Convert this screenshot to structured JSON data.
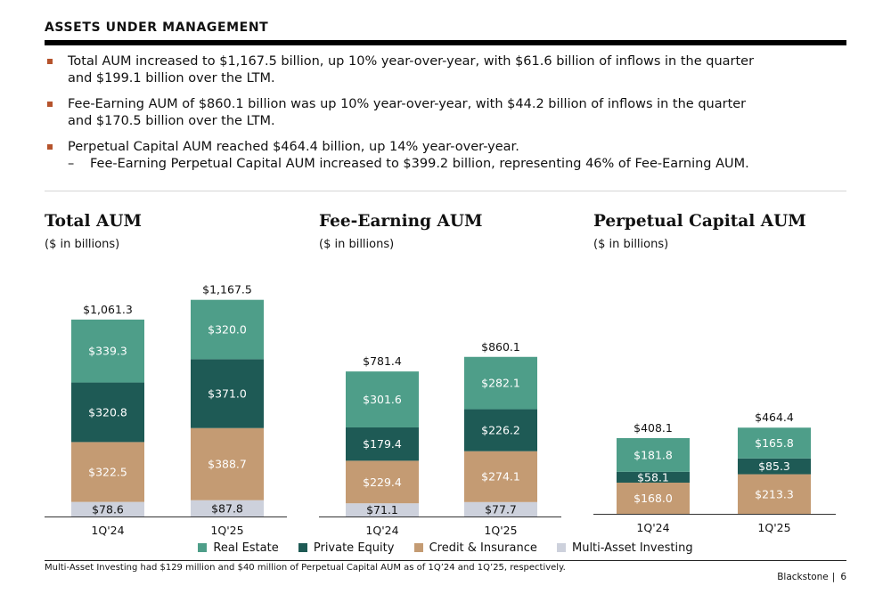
{
  "header": {
    "title": "ASSETS UNDER MANAGEMENT"
  },
  "bullets": [
    {
      "lines": [
        "Total AUM increased to $1,167.5 billion, up 10% year-over-year, with $61.6 billion of inflows in the quarter",
        "and $199.1 billion over the LTM."
      ]
    },
    {
      "lines": [
        "Fee-Earning AUM of $860.1 billion was up 10% year-over-year, with $44.2 billion of inflows in the quarter",
        "and $170.5 billion over the LTM."
      ]
    },
    {
      "lines": [
        "Perpetual Capital AUM reached $464.4 billion, up 14% year-over-year."
      ],
      "sub": "Fee-Earning Perpetual Capital AUM increased to $399.2 billion, representing 46% of Fee-Earning AUM."
    }
  ],
  "colors": {
    "real_estate": "#4e9e89",
    "private_equity": "#1e5a55",
    "credit_insurance": "#c49b73",
    "multi_asset": "#cdd1dc",
    "bullet_marker": "#b5532c"
  },
  "legend": [
    {
      "label": "Real Estate",
      "color": "#4e9e89"
    },
    {
      "label": "Private Equity",
      "color": "#1e5a55"
    },
    {
      "label": "Credit & Insurance",
      "color": "#c49b73"
    },
    {
      "label": "Multi-Asset Investing",
      "color": "#cdd1dc"
    }
  ],
  "chart_data": [
    {
      "type": "bar",
      "stacked": true,
      "title": "Total AUM",
      "subtitle": "($ in billions)",
      "categories": [
        "1Q'24",
        "1Q'25"
      ],
      "totals": [
        "$1,061.3",
        "$1,167.5"
      ],
      "series": [
        {
          "name": "Multi-Asset Investing",
          "values": [
            78.6,
            87.8
          ],
          "labels": [
            "$78.6",
            "$87.8"
          ],
          "color": "#cdd1dc",
          "label_color": "#111111"
        },
        {
          "name": "Credit & Insurance",
          "values": [
            322.5,
            388.7
          ],
          "labels": [
            "$322.5",
            "$388.7"
          ],
          "color": "#c49b73",
          "label_color": "#ffffff"
        },
        {
          "name": "Private Equity",
          "values": [
            320.8,
            371.0
          ],
          "labels": [
            "$320.8",
            "$371.0"
          ],
          "color": "#1e5a55",
          "label_color": "#ffffff"
        },
        {
          "name": "Real Estate",
          "values": [
            339.3,
            320.0
          ],
          "labels": [
            "$339.3",
            "$320.0"
          ],
          "color": "#4e9e89",
          "label_color": "#ffffff"
        }
      ]
    },
    {
      "type": "bar",
      "stacked": true,
      "title": "Fee-Earning AUM",
      "subtitle": "($ in billions)",
      "categories": [
        "1Q'24",
        "1Q'25"
      ],
      "totals": [
        "$781.4",
        "$860.1"
      ],
      "series": [
        {
          "name": "Multi-Asset Investing",
          "values": [
            71.1,
            77.7
          ],
          "labels": [
            "$71.1",
            "$77.7"
          ],
          "color": "#cdd1dc",
          "label_color": "#111111"
        },
        {
          "name": "Credit & Insurance",
          "values": [
            229.4,
            274.1
          ],
          "labels": [
            "$229.4",
            "$274.1"
          ],
          "color": "#c49b73",
          "label_color": "#ffffff"
        },
        {
          "name": "Private Equity",
          "values": [
            179.4,
            226.2
          ],
          "labels": [
            "$179.4",
            "$226.2"
          ],
          "color": "#1e5a55",
          "label_color": "#ffffff"
        },
        {
          "name": "Real Estate",
          "values": [
            301.6,
            282.1
          ],
          "labels": [
            "$301.6",
            "$282.1"
          ],
          "color": "#4e9e89",
          "label_color": "#ffffff"
        }
      ]
    },
    {
      "type": "bar",
      "stacked": true,
      "title": "Perpetual Capital AUM",
      "subtitle": "($ in billions)",
      "categories": [
        "1Q'24",
        "1Q'25"
      ],
      "totals": [
        "$408.1",
        "$464.4"
      ],
      "series": [
        {
          "name": "Credit & Insurance",
          "values": [
            168.0,
            213.3
          ],
          "labels": [
            "$168.0",
            "$213.3"
          ],
          "color": "#c49b73",
          "label_color": "#ffffff"
        },
        {
          "name": "Private Equity",
          "values": [
            58.1,
            85.3
          ],
          "labels": [
            "$58.1",
            "$85.3"
          ],
          "color": "#1e5a55",
          "label_color": "#ffffff"
        },
        {
          "name": "Real Estate",
          "values": [
            181.8,
            165.8
          ],
          "labels": [
            "$181.8",
            "$165.8"
          ],
          "color": "#4e9e89",
          "label_color": "#ffffff"
        }
      ]
    }
  ],
  "footnote": "Multi-Asset Investing had $129 million and $40 million of Perpetual Capital AUM as of 1Q’24 and 1Q’25, respectively.",
  "footer": {
    "company": "Blackstone",
    "page_number": "6"
  }
}
